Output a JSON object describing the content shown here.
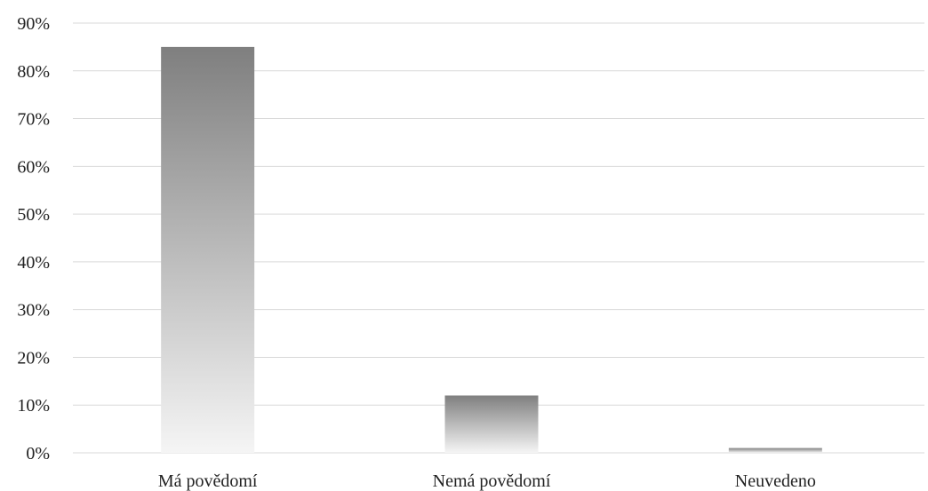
{
  "chart_data": {
    "type": "bar",
    "categories": [
      "Má povědomí",
      "Nemá povědomí",
      "Neuvedeno"
    ],
    "values": [
      85,
      12,
      1
    ],
    "unit": "%",
    "title": "",
    "xlabel": "",
    "ylabel": "",
    "ylim": [
      0,
      90
    ],
    "yticks": [
      0,
      10,
      20,
      30,
      40,
      50,
      60,
      70,
      80,
      90
    ],
    "ytick_labels": [
      "0%",
      "10%",
      "20%",
      "30%",
      "40%",
      "50%",
      "60%",
      "70%",
      "80%",
      "90%"
    ],
    "grid": true,
    "legend": "none",
    "colors": {
      "bar_top": "#7f7f7f",
      "bar_bottom": "#f5f5f5",
      "grid": "#d9d9d9",
      "text": "#222222"
    }
  }
}
